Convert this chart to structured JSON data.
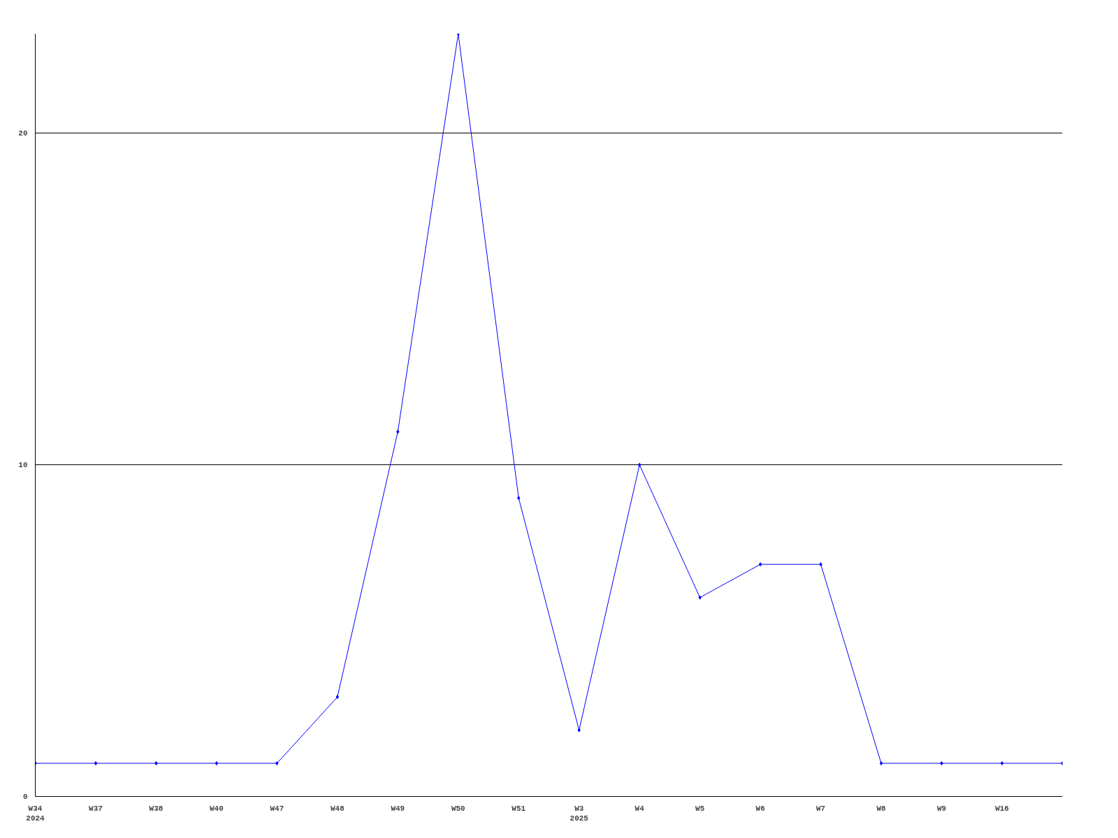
{
  "chart_data": {
    "type": "line",
    "categories": [
      "W34\n2024",
      "W37",
      "W38",
      "W40",
      "W47",
      "W48",
      "W49",
      "W50",
      "W51",
      "W3\n2025",
      "W4",
      "W5",
      "W6",
      "W7",
      "W8",
      "W9",
      "W16",
      null
    ],
    "series": [
      {
        "color": "#0000ff",
        "values": [
          1,
          1,
          1,
          1,
          1,
          3,
          11,
          23,
          9,
          2,
          10,
          6,
          7,
          7,
          1,
          1,
          1,
          1
        ]
      }
    ],
    "ylim": [
      0,
      23
    ],
    "yticks": [
      0,
      10,
      20
    ],
    "grid": "y",
    "marker": "diamond",
    "line_style": "solid"
  }
}
